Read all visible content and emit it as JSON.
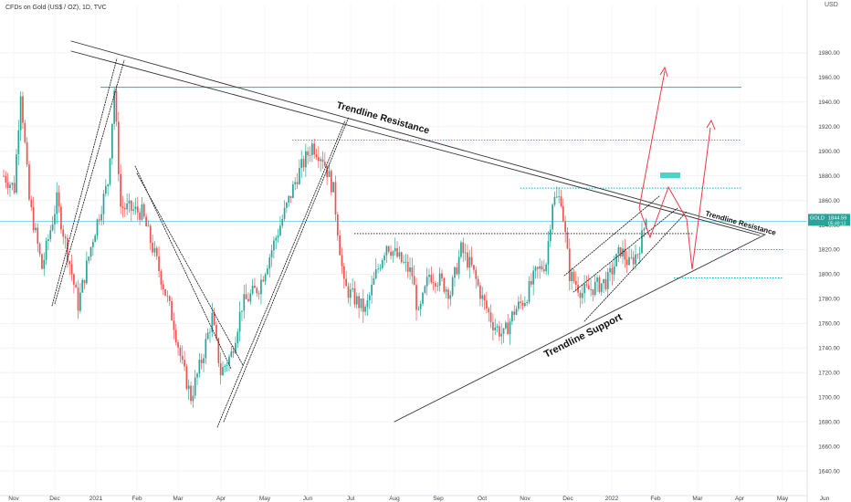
{
  "header": {
    "title": "CFDs on Gold (US$ / OZ), 1D, TVC",
    "currency": "USD"
  },
  "price_label": {
    "symbol": "GOLD",
    "price": "1844.59",
    "countdown": "05:49:13"
  },
  "colors": {
    "up": "#26a69a",
    "down": "#ef5350",
    "trendline": "#333333",
    "level": "#00b8d4",
    "projection": "#f23645",
    "target_box": "#4ed3c8"
  },
  "chart_data": {
    "type": "candlestick",
    "title": "CFDs on Gold (US$ / OZ), 1D, TVC",
    "ylim": [
      1620,
      2020
    ],
    "y_ticks": [
      1640,
      1660,
      1680,
      1700,
      1720,
      1740,
      1760,
      1780,
      1800,
      1820,
      1840,
      1860,
      1880,
      1900,
      1920,
      1940,
      1960,
      1980
    ],
    "x_ticks": [
      "Nov",
      "Dec",
      "2021",
      "Feb",
      "Mar",
      "Apr",
      "May",
      "Jun",
      "Jul",
      "Aug",
      "Sep",
      "Oct",
      "Nov",
      "Dec",
      "2022",
      "Feb",
      "Mar",
      "Apr",
      "May",
      "Jun"
    ],
    "anchors": [
      {
        "t": 0,
        "p": 1880
      },
      {
        "t": 5,
        "p": 1870
      },
      {
        "t": 8,
        "p": 1950
      },
      {
        "t": 12,
        "p": 1860
      },
      {
        "t": 18,
        "p": 1805
      },
      {
        "t": 25,
        "p": 1860
      },
      {
        "t": 35,
        "p": 1775
      },
      {
        "t": 42,
        "p": 1830
      },
      {
        "t": 49,
        "p": 1875
      },
      {
        "t": 52,
        "p": 1950
      },
      {
        "t": 55,
        "p": 1855
      },
      {
        "t": 65,
        "p": 1850
      },
      {
        "t": 72,
        "p": 1810
      },
      {
        "t": 80,
        "p": 1760
      },
      {
        "t": 84,
        "p": 1725
      },
      {
        "t": 88,
        "p": 1700
      },
      {
        "t": 93,
        "p": 1730
      },
      {
        "t": 98,
        "p": 1765
      },
      {
        "t": 102,
        "p": 1720
      },
      {
        "t": 107,
        "p": 1735
      },
      {
        "t": 112,
        "p": 1775
      },
      {
        "t": 120,
        "p": 1790
      },
      {
        "t": 128,
        "p": 1830
      },
      {
        "t": 138,
        "p": 1880
      },
      {
        "t": 145,
        "p": 1905
      },
      {
        "t": 150,
        "p": 1895
      },
      {
        "t": 155,
        "p": 1868
      },
      {
        "t": 160,
        "p": 1790
      },
      {
        "t": 165,
        "p": 1780
      },
      {
        "t": 170,
        "p": 1770
      },
      {
        "t": 175,
        "p": 1800
      },
      {
        "t": 180,
        "p": 1825
      },
      {
        "t": 187,
        "p": 1810
      },
      {
        "t": 192,
        "p": 1800
      },
      {
        "t": 195,
        "p": 1765
      },
      {
        "t": 200,
        "p": 1800
      },
      {
        "t": 205,
        "p": 1795
      },
      {
        "t": 210,
        "p": 1785
      },
      {
        "t": 215,
        "p": 1820
      },
      {
        "t": 220,
        "p": 1805
      },
      {
        "t": 225,
        "p": 1780
      },
      {
        "t": 230,
        "p": 1760
      },
      {
        "t": 235,
        "p": 1750
      },
      {
        "t": 240,
        "p": 1770
      },
      {
        "t": 245,
        "p": 1780
      },
      {
        "t": 250,
        "p": 1800
      },
      {
        "t": 255,
        "p": 1810
      },
      {
        "t": 258,
        "p": 1860
      },
      {
        "t": 262,
        "p": 1862
      },
      {
        "t": 266,
        "p": 1800
      },
      {
        "t": 272,
        "p": 1785
      },
      {
        "t": 278,
        "p": 1790
      },
      {
        "t": 284,
        "p": 1795
      },
      {
        "t": 290,
        "p": 1820
      },
      {
        "t": 294,
        "p": 1808
      },
      {
        "t": 298,
        "p": 1818
      },
      {
        "t": 300,
        "p": 1830
      },
      {
        "t": 302,
        "p": 1845
      }
    ],
    "current_price": 1844.59,
    "price_lines": [
      1952,
      1909,
      1870,
      1843,
      1833,
      1820,
      1797
    ],
    "annotations": [
      "Trendline Resistance",
      "Trendline Resistance",
      "Trendline Support"
    ]
  }
}
